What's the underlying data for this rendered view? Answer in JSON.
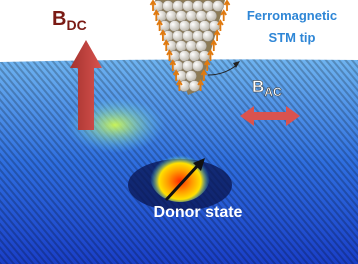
{
  "labels": {
    "b_dc": {
      "symbol": "B",
      "subscript": "DC"
    },
    "tip": {
      "line1": "Ferromagnetic",
      "line2": "STM tip"
    },
    "b_ac": {
      "symbol": "B",
      "subscript": "AC"
    },
    "donor": "Donor state"
  }
}
